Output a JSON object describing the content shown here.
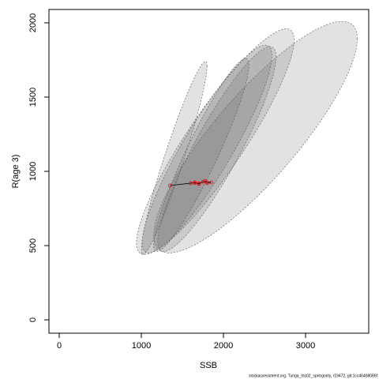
{
  "chart_data": {
    "type": "ellipse-scatter",
    "xlabel": "SSB",
    "ylabel": "R(age 3)",
    "xlim": [
      -125,
      3769
    ],
    "ylim": [
      -90,
      2090
    ],
    "xticks": [
      0,
      1000,
      2000,
      3000
    ],
    "yticks": [
      0,
      500,
      1000,
      1500,
      2000
    ],
    "ellipse_color": "#606060",
    "ellipses": [
      {
        "cx": 2390,
        "cy": 1230,
        "hx": 1240,
        "hy": 780,
        "rho": 0.85
      },
      {
        "cx": 1900,
        "cy": 1200,
        "hx": 960,
        "hy": 760,
        "rho": 0.9
      },
      {
        "cx": 1920,
        "cy": 1150,
        "hx": 720,
        "hy": 690,
        "rho": 0.9
      },
      {
        "cx": 1400,
        "cy": 1090,
        "hx": 400,
        "hy": 650,
        "rho": 0.95
      },
      {
        "cx": 1800,
        "cy": 1150,
        "hx": 790,
        "hy": 700,
        "rho": 0.9
      },
      {
        "cx": 1730,
        "cy": 1110,
        "hx": 580,
        "hy": 650,
        "rho": 0.93
      }
    ],
    "series": [
      {
        "color": "#ff0000",
        "x": [
          1350,
          1600,
          1650,
          1700,
          1750,
          1800,
          1850,
          1780,
          1700,
          1650
        ],
        "values": [
          905,
          920,
          925,
          915,
          930,
          920,
          925,
          935,
          918,
          922
        ]
      }
    ],
    "footer": "stockassessment.org, Tunga_tris02_springonly, r19472, git:1cc464b8086f"
  }
}
